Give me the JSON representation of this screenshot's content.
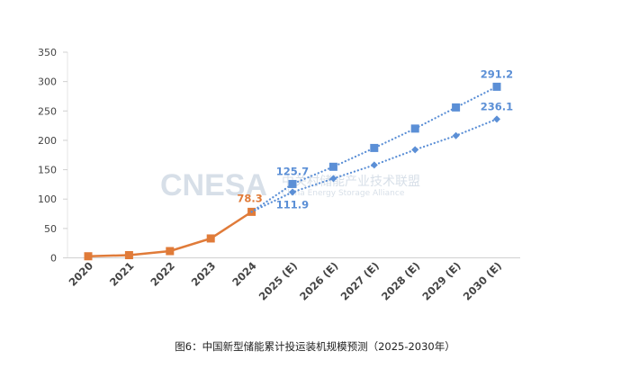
{
  "chart_data": {
    "type": "line",
    "title": "",
    "xlabel": "",
    "ylabel": "",
    "categories": [
      "2020",
      "2021",
      "2022",
      "2023",
      "2024",
      "2025 (E)",
      "2026 (E)",
      "2027 (E)",
      "2028 (E)",
      "2029 (E)",
      "2030 (E)"
    ],
    "ylim": [
      0,
      350
    ],
    "yticks": [
      0,
      50,
      100,
      150,
      200,
      250,
      300,
      350
    ],
    "grid": false,
    "legend": "none",
    "series": [
      {
        "style": "solid",
        "marker": "square",
        "color": "#E07B39",
        "values": [
          2.7,
          4.6,
          11.5,
          33.0,
          78.3,
          null,
          null,
          null,
          null,
          null,
          null
        ],
        "labels": {
          "4": "78.3"
        }
      },
      {
        "style": "dotted",
        "marker": "square",
        "color": "#5B8FD6",
        "values": [
          null,
          null,
          null,
          null,
          78.3,
          125.7,
          155,
          187,
          220,
          256,
          291.2
        ],
        "labels": {
          "5": "125.7",
          "10": "291.2"
        }
      },
      {
        "style": "dotted",
        "marker": "diamond",
        "color": "#5B8FD6",
        "values": [
          null,
          null,
          null,
          null,
          78.3,
          111.9,
          135,
          158,
          184,
          208,
          236.1
        ],
        "labels": {
          "5": "111.9",
          "10": "236.1"
        }
      }
    ]
  },
  "watermark": {
    "logo": "CNESA",
    "cn": "中关村储能产业技术联盟",
    "en": "China Energy Storage Alliance"
  },
  "caption": "图6：中国新型储能累计投运装机规模预测（2025-2030年）"
}
